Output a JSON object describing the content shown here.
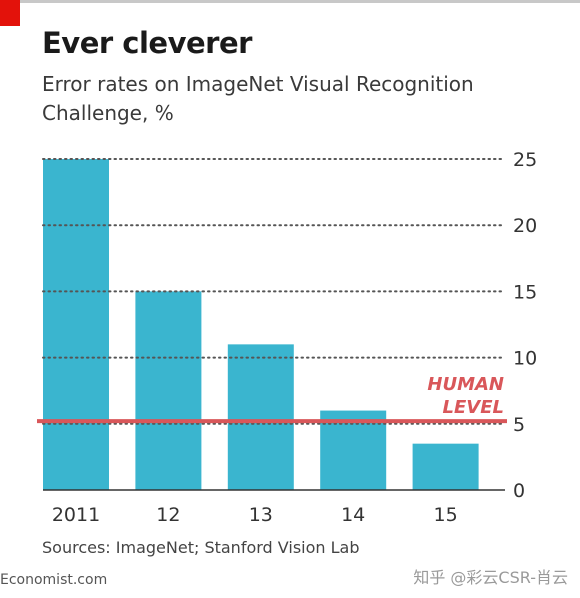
{
  "header": {
    "title": "Ever cleverer",
    "subtitle": "Error rates on ImageNet Visual Recognition Challenge, %"
  },
  "footer": {
    "source": "Sources: ImageNet; Stanford Vision Lab",
    "brand": "Economist.com",
    "watermark": "知乎 @彩云CSR-肖云"
  },
  "colors": {
    "bar": "#3ab5cf",
    "human_line": "#d9575a",
    "grid": "#555555"
  },
  "chart_data": {
    "type": "bar",
    "title": "Ever cleverer",
    "subtitle": "Error rates on ImageNet Visual Recognition Challenge, %",
    "categories": [
      "2011",
      "12",
      "13",
      "14",
      "15"
    ],
    "values": [
      25,
      15,
      11,
      6,
      3.5
    ],
    "ylim": [
      0,
      25
    ],
    "yticks": [
      0,
      5,
      10,
      15,
      20,
      25
    ],
    "y_axis_side": "right",
    "grid": true,
    "reference_line": {
      "value": 5.2,
      "label_lines": [
        "HUMAN",
        "LEVEL"
      ]
    }
  }
}
